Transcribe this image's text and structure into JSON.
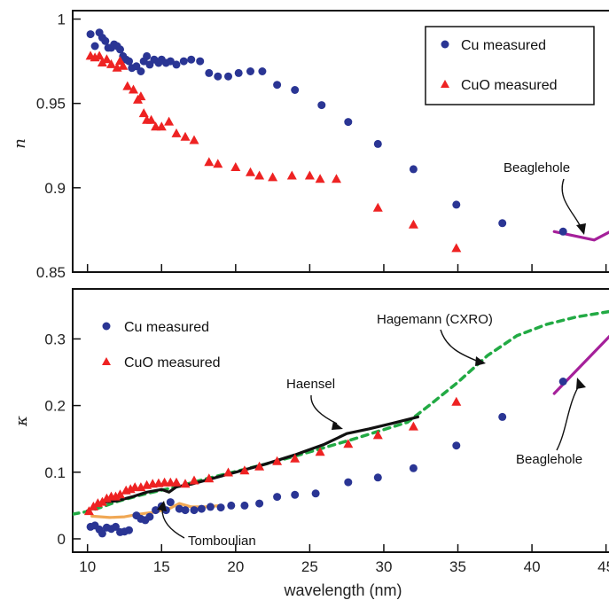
{
  "colors": {
    "cu": "#2a3594",
    "cuo": "#ee2222",
    "beaglehole": "#a5209a",
    "hagemann": "#22aa44",
    "haensel": "#111111",
    "tomboulian": "#f0a855"
  },
  "chart_data": [
    {
      "type": "scatter",
      "ylabel": "n",
      "xlim": [
        9,
        45.5
      ],
      "ylim": [
        0.85,
        1.005
      ],
      "yticks": [
        {
          "value": 0.85,
          "label": "0.85"
        },
        {
          "value": 0.9,
          "label": "0.9"
        },
        {
          "value": 0.95,
          "label": "0.95"
        },
        {
          "value": 1.0,
          "label": "1"
        }
      ],
      "legend": {
        "position": "top-right",
        "entries": [
          "Cu measured",
          "CuO measured"
        ]
      },
      "series": [
        {
          "name": "Cu measured",
          "marker": "circle",
          "points": [
            [
              10.2,
              0.991
            ],
            [
              10.5,
              0.984
            ],
            [
              10.8,
              0.992
            ],
            [
              11.0,
              0.989
            ],
            [
              11.2,
              0.987
            ],
            [
              11.4,
              0.983
            ],
            [
              11.6,
              0.983
            ],
            [
              11.8,
              0.985
            ],
            [
              12.0,
              0.984
            ],
            [
              12.2,
              0.982
            ],
            [
              12.4,
              0.978
            ],
            [
              12.6,
              0.976
            ],
            [
              12.8,
              0.975
            ],
            [
              13.0,
              0.971
            ],
            [
              13.3,
              0.972
            ],
            [
              13.6,
              0.969
            ],
            [
              13.8,
              0.975
            ],
            [
              14.0,
              0.978
            ],
            [
              14.2,
              0.973
            ],
            [
              14.5,
              0.976
            ],
            [
              14.8,
              0.974
            ],
            [
              15.0,
              0.976
            ],
            [
              15.3,
              0.974
            ],
            [
              15.6,
              0.975
            ],
            [
              16.0,
              0.973
            ],
            [
              16.5,
              0.975
            ],
            [
              17.0,
              0.976
            ],
            [
              17.6,
              0.975
            ],
            [
              18.2,
              0.968
            ],
            [
              18.8,
              0.966
            ],
            [
              19.5,
              0.966
            ],
            [
              20.2,
              0.968
            ],
            [
              21.0,
              0.969
            ],
            [
              21.8,
              0.969
            ],
            [
              22.8,
              0.961
            ],
            [
              24.0,
              0.958
            ],
            [
              25.8,
              0.949
            ],
            [
              27.6,
              0.939
            ],
            [
              29.6,
              0.926
            ],
            [
              32.0,
              0.911
            ],
            [
              34.9,
              0.89
            ],
            [
              38.0,
              0.879
            ],
            [
              42.1,
              0.874
            ]
          ]
        },
        {
          "name": "CuO measured",
          "marker": "triangle",
          "points": [
            [
              10.2,
              0.978
            ],
            [
              10.5,
              0.977
            ],
            [
              10.8,
              0.978
            ],
            [
              11.0,
              0.974
            ],
            [
              11.3,
              0.976
            ],
            [
              11.6,
              0.973
            ],
            [
              12.0,
              0.971
            ],
            [
              12.2,
              0.975
            ],
            [
              12.4,
              0.972
            ],
            [
              12.7,
              0.96
            ],
            [
              13.1,
              0.958
            ],
            [
              13.4,
              0.952
            ],
            [
              13.6,
              0.954
            ],
            [
              13.8,
              0.944
            ],
            [
              14.0,
              0.94
            ],
            [
              14.3,
              0.94
            ],
            [
              14.6,
              0.936
            ],
            [
              15.0,
              0.936
            ],
            [
              15.5,
              0.939
            ],
            [
              16.0,
              0.932
            ],
            [
              16.6,
              0.93
            ],
            [
              17.2,
              0.928
            ],
            [
              18.2,
              0.915
            ],
            [
              18.8,
              0.914
            ],
            [
              20.0,
              0.912
            ],
            [
              21.0,
              0.909
            ],
            [
              21.6,
              0.907
            ],
            [
              22.5,
              0.906
            ],
            [
              23.8,
              0.907
            ],
            [
              25.0,
              0.907
            ],
            [
              25.7,
              0.905
            ],
            [
              26.8,
              0.905
            ],
            [
              29.6,
              0.888
            ],
            [
              32.0,
              0.878
            ],
            [
              34.9,
              0.864
            ]
          ]
        },
        {
          "name": "Beaglehole",
          "marker": "line",
          "points": [
            [
              41.5,
              0.874
            ],
            [
              44.2,
              0.869
            ],
            [
              45.5,
              0.875
            ]
          ]
        }
      ],
      "annotations": [
        {
          "text": "Beaglehole"
        }
      ]
    },
    {
      "type": "scatter",
      "ylabel": "κ",
      "xlabel": "wavelength (nm)",
      "xlim": [
        9,
        45.5
      ],
      "ylim": [
        -0.02,
        0.375
      ],
      "xticks": [
        {
          "value": 10,
          "label": "10"
        },
        {
          "value": 15,
          "label": "15"
        },
        {
          "value": 20,
          "label": "20"
        },
        {
          "value": 25,
          "label": "25"
        },
        {
          "value": 30,
          "label": "30"
        },
        {
          "value": 35,
          "label": "35"
        },
        {
          "value": 40,
          "label": "40"
        },
        {
          "value": 45,
          "label": "45"
        }
      ],
      "yticks": [
        {
          "value": 0,
          "label": "0"
        },
        {
          "value": 0.1,
          "label": "0.1"
        },
        {
          "value": 0.2,
          "label": "0.2"
        },
        {
          "value": 0.3,
          "label": "0.3"
        }
      ],
      "legend": {
        "position": "top-left",
        "entries": [
          "Cu measured",
          "CuO measured"
        ]
      },
      "series": [
        {
          "name": "Cu measured",
          "marker": "circle",
          "points": [
            [
              10.2,
              0.018
            ],
            [
              10.5,
              0.02
            ],
            [
              10.8,
              0.014
            ],
            [
              11.0,
              0.008
            ],
            [
              11.3,
              0.017
            ],
            [
              11.6,
              0.015
            ],
            [
              11.9,
              0.018
            ],
            [
              12.2,
              0.01
            ],
            [
              12.5,
              0.011
            ],
            [
              12.8,
              0.013
            ],
            [
              13.3,
              0.035
            ],
            [
              13.6,
              0.03
            ],
            [
              13.9,
              0.028
            ],
            [
              14.2,
              0.033
            ],
            [
              14.6,
              0.043
            ],
            [
              15.0,
              0.049
            ],
            [
              15.3,
              0.043
            ],
            [
              15.6,
              0.055
            ],
            [
              16.2,
              0.045
            ],
            [
              16.6,
              0.043
            ],
            [
              17.2,
              0.043
            ],
            [
              17.7,
              0.045
            ],
            [
              18.3,
              0.048
            ],
            [
              19.0,
              0.047
            ],
            [
              19.7,
              0.05
            ],
            [
              20.6,
              0.05
            ],
            [
              21.6,
              0.053
            ],
            [
              22.8,
              0.063
            ],
            [
              24.0,
              0.066
            ],
            [
              25.4,
              0.068
            ],
            [
              27.6,
              0.085
            ],
            [
              29.6,
              0.092
            ],
            [
              32.0,
              0.106
            ],
            [
              34.9,
              0.14
            ],
            [
              38.0,
              0.183
            ],
            [
              42.1,
              0.236
            ]
          ]
        },
        {
          "name": "CuO measured",
          "marker": "triangle",
          "points": [
            [
              10.1,
              0.041
            ],
            [
              10.4,
              0.048
            ],
            [
              10.7,
              0.053
            ],
            [
              11.0,
              0.055
            ],
            [
              11.3,
              0.06
            ],
            [
              11.6,
              0.063
            ],
            [
              11.9,
              0.063
            ],
            [
              12.2,
              0.066
            ],
            [
              12.6,
              0.072
            ],
            [
              12.9,
              0.074
            ],
            [
              13.2,
              0.077
            ],
            [
              13.6,
              0.077
            ],
            [
              14.0,
              0.08
            ],
            [
              14.4,
              0.082
            ],
            [
              14.8,
              0.083
            ],
            [
              15.2,
              0.084
            ],
            [
              15.6,
              0.084
            ],
            [
              16.0,
              0.084
            ],
            [
              16.6,
              0.082
            ],
            [
              17.2,
              0.087
            ],
            [
              18.2,
              0.09
            ],
            [
              19.5,
              0.099
            ],
            [
              20.6,
              0.102
            ],
            [
              21.6,
              0.108
            ],
            [
              22.8,
              0.116
            ],
            [
              24.0,
              0.12
            ],
            [
              25.7,
              0.13
            ],
            [
              27.6,
              0.142
            ],
            [
              29.6,
              0.155
            ],
            [
              32.0,
              0.168
            ],
            [
              34.9,
              0.205
            ]
          ]
        },
        {
          "name": "Hagemann (CXRO)",
          "marker": "dashed",
          "points": [
            [
              9.0,
              0.037
            ],
            [
              10.0,
              0.041
            ],
            [
              11.0,
              0.048
            ],
            [
              12.0,
              0.056
            ],
            [
              13.0,
              0.062
            ],
            [
              14.0,
              0.068
            ],
            [
              15.0,
              0.073
            ],
            [
              16.0,
              0.078
            ],
            [
              18.0,
              0.09
            ],
            [
              20.0,
              0.101
            ],
            [
              22.0,
              0.112
            ],
            [
              24.0,
              0.124
            ],
            [
              26.0,
              0.137
            ],
            [
              28.0,
              0.15
            ],
            [
              30.0,
              0.164
            ],
            [
              31.6,
              0.175
            ],
            [
              33.0,
              0.199
            ],
            [
              35.0,
              0.235
            ],
            [
              37.0,
              0.275
            ],
            [
              39.0,
              0.305
            ],
            [
              41.0,
              0.322
            ],
            [
              43.0,
              0.333
            ],
            [
              45.5,
              0.342
            ]
          ]
        },
        {
          "name": "Haensel",
          "marker": "line",
          "points": [
            [
              10.0,
              0.042
            ],
            [
              11.0,
              0.055
            ],
            [
              12.0,
              0.057
            ],
            [
              13.0,
              0.063
            ],
            [
              14.0,
              0.07
            ],
            [
              15.0,
              0.074
            ],
            [
              15.5,
              0.07
            ],
            [
              16.0,
              0.078
            ],
            [
              17.0,
              0.082
            ],
            [
              18.0,
              0.088
            ],
            [
              20.0,
              0.1
            ],
            [
              22.0,
              0.112
            ],
            [
              24.0,
              0.126
            ],
            [
              26.0,
              0.142
            ],
            [
              27.5,
              0.158
            ],
            [
              29.0,
              0.165
            ],
            [
              30.5,
              0.173
            ],
            [
              32.3,
              0.183
            ]
          ]
        },
        {
          "name": "Tomboulian",
          "marker": "line",
          "points": [
            [
              10.3,
              0.034
            ],
            [
              11.5,
              0.032
            ],
            [
              12.5,
              0.033
            ],
            [
              13.5,
              0.037
            ],
            [
              14.5,
              0.04
            ],
            [
              15.5,
              0.045
            ],
            [
              16.2,
              0.053
            ],
            [
              17.0,
              0.048
            ],
            [
              18.0,
              0.048
            ],
            [
              19.0,
              0.05
            ]
          ]
        },
        {
          "name": "Beaglehole",
          "marker": "line",
          "points": [
            [
              41.5,
              0.218
            ],
            [
              45.5,
              0.31
            ]
          ]
        }
      ],
      "annotations": [
        {
          "text": "Hagemann (CXRO)"
        },
        {
          "text": "Haensel"
        },
        {
          "text": "Beaglehole"
        },
        {
          "text": "Tomboulian"
        }
      ]
    }
  ]
}
